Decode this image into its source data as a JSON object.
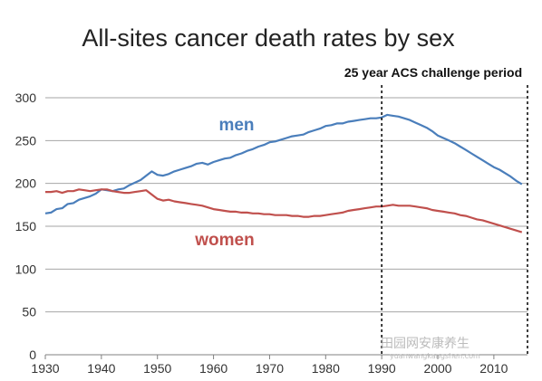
{
  "chart_data": {
    "type": "line",
    "title": "All-sites cancer death rates by sex",
    "annotation": "25 year ACS challenge period",
    "period": [
      1990,
      2016
    ],
    "xlim": [
      1930,
      2016
    ],
    "ylim": [
      0,
      300
    ],
    "x_ticks": [
      1930,
      1940,
      1950,
      1960,
      1970,
      1980,
      1990,
      2000,
      2010
    ],
    "y_ticks": [
      0,
      50,
      100,
      150,
      200,
      250,
      300
    ],
    "grid": true,
    "series": [
      {
        "name": "men",
        "color": "#4a7ebb",
        "x": [
          1930,
          1931,
          1932,
          1933,
          1934,
          1935,
          1936,
          1937,
          1938,
          1939,
          1940,
          1941,
          1942,
          1943,
          1944,
          1945,
          1946,
          1947,
          1948,
          1949,
          1950,
          1951,
          1952,
          1953,
          1954,
          1955,
          1956,
          1957,
          1958,
          1959,
          1960,
          1961,
          1962,
          1963,
          1964,
          1965,
          1966,
          1967,
          1968,
          1969,
          1970,
          1971,
          1972,
          1973,
          1974,
          1975,
          1976,
          1977,
          1978,
          1979,
          1980,
          1981,
          1982,
          1983,
          1984,
          1985,
          1986,
          1987,
          1988,
          1989,
          1990,
          1991,
          1992,
          1993,
          1994,
          1995,
          1996,
          1997,
          1998,
          1999,
          2000,
          2001,
          2002,
          2003,
          2004,
          2005,
          2006,
          2007,
          2008,
          2009,
          2010,
          2011,
          2012,
          2013,
          2014,
          2015
        ],
        "values": [
          165,
          166,
          170,
          171,
          176,
          177,
          181,
          183,
          185,
          188,
          193,
          192,
          191,
          193,
          194,
          198,
          201,
          204,
          209,
          214,
          210,
          209,
          211,
          214,
          216,
          218,
          220,
          223,
          224,
          222,
          225,
          227,
          229,
          230,
          233,
          235,
          238,
          240,
          243,
          245,
          248,
          249,
          251,
          253,
          255,
          256,
          257,
          260,
          262,
          264,
          267,
          268,
          270,
          270,
          272,
          273,
          274,
          275,
          276,
          276,
          277,
          280,
          279,
          278,
          276,
          274,
          271,
          268,
          265,
          261,
          256,
          253,
          250,
          247,
          243,
          239,
          235,
          231,
          227,
          223,
          219,
          216,
          212,
          208,
          203,
          199
        ]
      },
      {
        "name": "women",
        "color": "#c0504d",
        "x": [
          1930,
          1931,
          1932,
          1933,
          1934,
          1935,
          1936,
          1937,
          1938,
          1939,
          1940,
          1941,
          1942,
          1943,
          1944,
          1945,
          1946,
          1947,
          1948,
          1949,
          1950,
          1951,
          1952,
          1953,
          1954,
          1955,
          1956,
          1957,
          1958,
          1959,
          1960,
          1961,
          1962,
          1963,
          1964,
          1965,
          1966,
          1967,
          1968,
          1969,
          1970,
          1971,
          1972,
          1973,
          1974,
          1975,
          1976,
          1977,
          1978,
          1979,
          1980,
          1981,
          1982,
          1983,
          1984,
          1985,
          1986,
          1987,
          1988,
          1989,
          1990,
          1991,
          1992,
          1993,
          1994,
          1995,
          1996,
          1997,
          1998,
          1999,
          2000,
          2001,
          2002,
          2003,
          2004,
          2005,
          2006,
          2007,
          2008,
          2009,
          2010,
          2011,
          2012,
          2013,
          2014,
          2015
        ],
        "values": [
          190,
          190,
          191,
          189,
          191,
          191,
          193,
          192,
          191,
          192,
          193,
          193,
          191,
          190,
          189,
          189,
          190,
          191,
          192,
          187,
          182,
          180,
          181,
          179,
          178,
          177,
          176,
          175,
          174,
          172,
          170,
          169,
          168,
          167,
          167,
          166,
          166,
          165,
          165,
          164,
          164,
          163,
          163,
          163,
          162,
          162,
          161,
          161,
          162,
          162,
          163,
          164,
          165,
          166,
          168,
          169,
          170,
          171,
          172,
          173,
          173,
          174,
          175,
          174,
          174,
          174,
          173,
          172,
          171,
          169,
          168,
          167,
          166,
          165,
          163,
          162,
          160,
          158,
          157,
          155,
          153,
          151,
          149,
          147,
          145,
          143
        ]
      }
    ]
  },
  "watermark": {
    "text": "田园网安康养生",
    "url": "yuanwangkangshen.com"
  }
}
